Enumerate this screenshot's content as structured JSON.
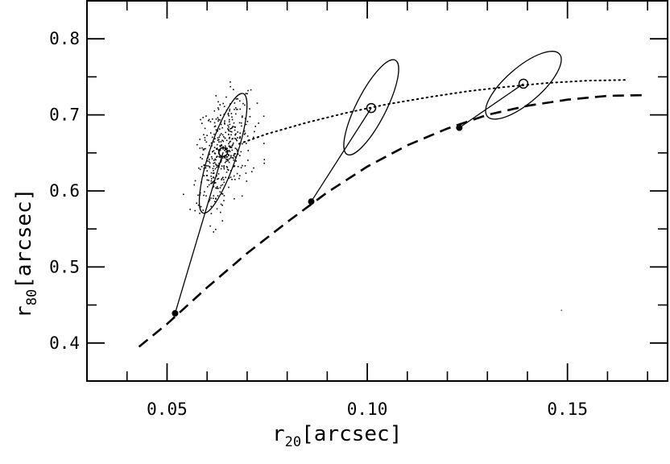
{
  "chart_data": {
    "type": "scatter",
    "xlabel": {
      "base": "r",
      "sub": "20",
      "unit": "[arcsec]"
    },
    "ylabel": {
      "base": "r",
      "sub": "80",
      "unit": "[arcsec]"
    },
    "xlim": [
      0.03,
      0.175
    ],
    "ylim": [
      0.35,
      0.85
    ],
    "xticks": [
      {
        "value": 0.05,
        "label": "0.05"
      },
      {
        "value": 0.1,
        "label": "0.10"
      },
      {
        "value": 0.15,
        "label": "0.15"
      }
    ],
    "yticks": [
      {
        "value": 0.4,
        "label": "0.4"
      },
      {
        "value": 0.5,
        "label": "0.5"
      },
      {
        "value": 0.6,
        "label": "0.6"
      },
      {
        "value": 0.7,
        "label": "0.7"
      },
      {
        "value": 0.8,
        "label": "0.8"
      }
    ],
    "x_minor_step": 0.01,
    "y_minor_step": 0.05,
    "series": [
      {
        "style": "dashed",
        "points": [
          [
            0.043,
            0.395
          ],
          [
            0.05,
            0.425
          ],
          [
            0.06,
            0.473
          ],
          [
            0.07,
            0.518
          ],
          [
            0.08,
            0.559
          ],
          [
            0.09,
            0.598
          ],
          [
            0.1,
            0.632
          ],
          [
            0.11,
            0.66
          ],
          [
            0.12,
            0.682
          ],
          [
            0.13,
            0.7
          ],
          [
            0.14,
            0.712
          ],
          [
            0.15,
            0.72
          ],
          [
            0.16,
            0.725
          ],
          [
            0.169,
            0.726
          ]
        ]
      },
      {
        "style": "dotted",
        "points": [
          [
            0.068,
            0.662
          ],
          [
            0.075,
            0.675
          ],
          [
            0.085,
            0.69
          ],
          [
            0.095,
            0.703
          ],
          [
            0.105,
            0.714
          ],
          [
            0.115,
            0.723
          ],
          [
            0.125,
            0.731
          ],
          [
            0.135,
            0.737
          ],
          [
            0.145,
            0.742
          ],
          [
            0.155,
            0.745
          ],
          [
            0.165,
            0.746
          ]
        ]
      }
    ],
    "filled_points": [
      {
        "x": 0.052,
        "y": 0.439
      },
      {
        "x": 0.086,
        "y": 0.586
      },
      {
        "x": 0.123,
        "y": 0.683
      }
    ],
    "open_points": [
      {
        "x": 0.064,
        "y": 0.651
      },
      {
        "x": 0.101,
        "y": 0.709
      },
      {
        "x": 0.139,
        "y": 0.741
      }
    ],
    "connectors": [
      {
        "from": [
          0.052,
          0.439
        ],
        "to": [
          0.064,
          0.651
        ]
      },
      {
        "from": [
          0.086,
          0.586
        ],
        "to": [
          0.101,
          0.709
        ]
      },
      {
        "from": [
          0.123,
          0.683
        ],
        "to": [
          0.139,
          0.741
        ]
      }
    ],
    "ellipses": [
      {
        "endpoints": [
          [
            0.069,
            0.728
          ],
          [
            0.059,
            0.571
          ]
        ],
        "width_x": 0.0068
      },
      {
        "endpoints": [
          [
            0.107,
            0.772
          ],
          [
            0.095,
            0.648
          ]
        ],
        "width_x": 0.0074
      },
      {
        "endpoints": [
          [
            0.148,
            0.78
          ],
          [
            0.13,
            0.698
          ]
        ],
        "width_x": 0.0088
      }
    ],
    "cloud": {
      "center": [
        0.064,
        0.651
      ],
      "sx": 0.0033,
      "sy": 0.036,
      "rho": 0.33,
      "count": 420,
      "seed": 7
    },
    "stray_point": {
      "x": 0.1485,
      "y": 0.443
    }
  }
}
